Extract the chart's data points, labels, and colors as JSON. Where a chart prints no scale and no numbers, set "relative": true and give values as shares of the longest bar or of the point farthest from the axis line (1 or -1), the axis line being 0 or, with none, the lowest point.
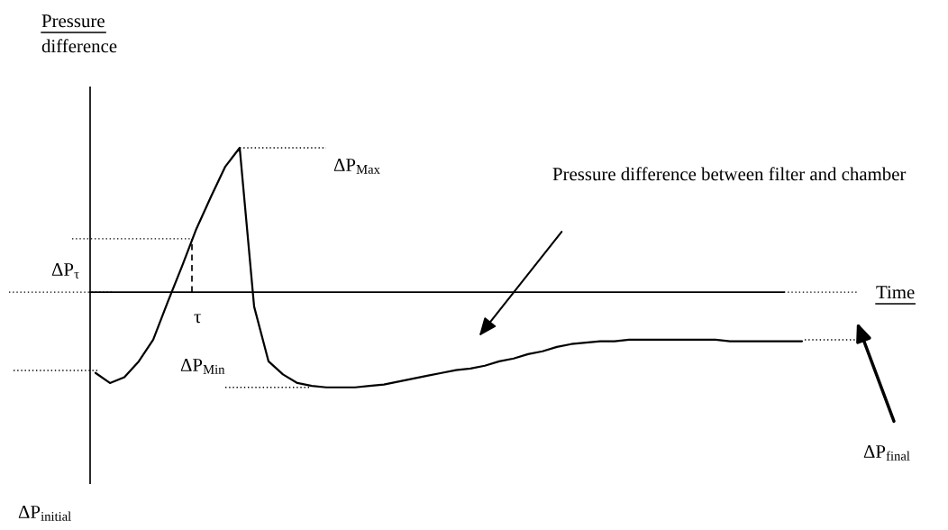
{
  "chart_data": {
    "type": "line",
    "relative": true,
    "color": "#000000",
    "xlabel": "Time",
    "categories": [
      null,
      null,
      null,
      null,
      null,
      null,
      null,
      null,
      null,
      null,
      null,
      null,
      null,
      null,
      null,
      null,
      null,
      null,
      null,
      null,
      null,
      null,
      null,
      null,
      null,
      null,
      null,
      null,
      null,
      null,
      null,
      null,
      null,
      null,
      null,
      null,
      null,
      null,
      null,
      null,
      null,
      null,
      null,
      null,
      null,
      null,
      null,
      null,
      null,
      null
    ],
    "values": [
      -0.56,
      -0.63,
      -0.59,
      -0.48,
      -0.33,
      -0.07,
      0.18,
      0.44,
      0.66,
      0.87,
      1,
      -0.1,
      -0.48,
      -0.57,
      -0.63,
      -0.65,
      -0.66,
      -0.66,
      -0.66,
      -0.65,
      -0.64,
      -0.62,
      -0.6,
      -0.58,
      -0.56,
      -0.54,
      -0.53,
      -0.51,
      -0.48,
      -0.46,
      -0.43,
      -0.41,
      -0.38,
      -0.36,
      -0.35,
      -0.34,
      -0.34,
      -0.33,
      -0.33,
      -0.33,
      -0.33,
      -0.33,
      -0.33,
      -0.33,
      -0.34,
      -0.34,
      -0.34,
      -0.34,
      -0.34,
      -0.34
    ],
    "ref_lines": [
      {
        "axis": "y",
        "value": 1,
        "label": "ΔP$_{Max}$",
        "line_style": "dotted"
      },
      {
        "axis": "y",
        "value": 0.37,
        "label": "ΔP$_{τ}$",
        "line_style": "dotted"
      },
      {
        "axis": "y",
        "value": -0.66,
        "label": "ΔP$_{Min}$",
        "line_style": "dotted"
      }
    ],
    "annotations": [
      "Pressure difference",
      "τ",
      "Pressure difference between filter and chamber",
      "ΔP$_{initial}$",
      "ΔP$_{final}$"
    ]
  }
}
